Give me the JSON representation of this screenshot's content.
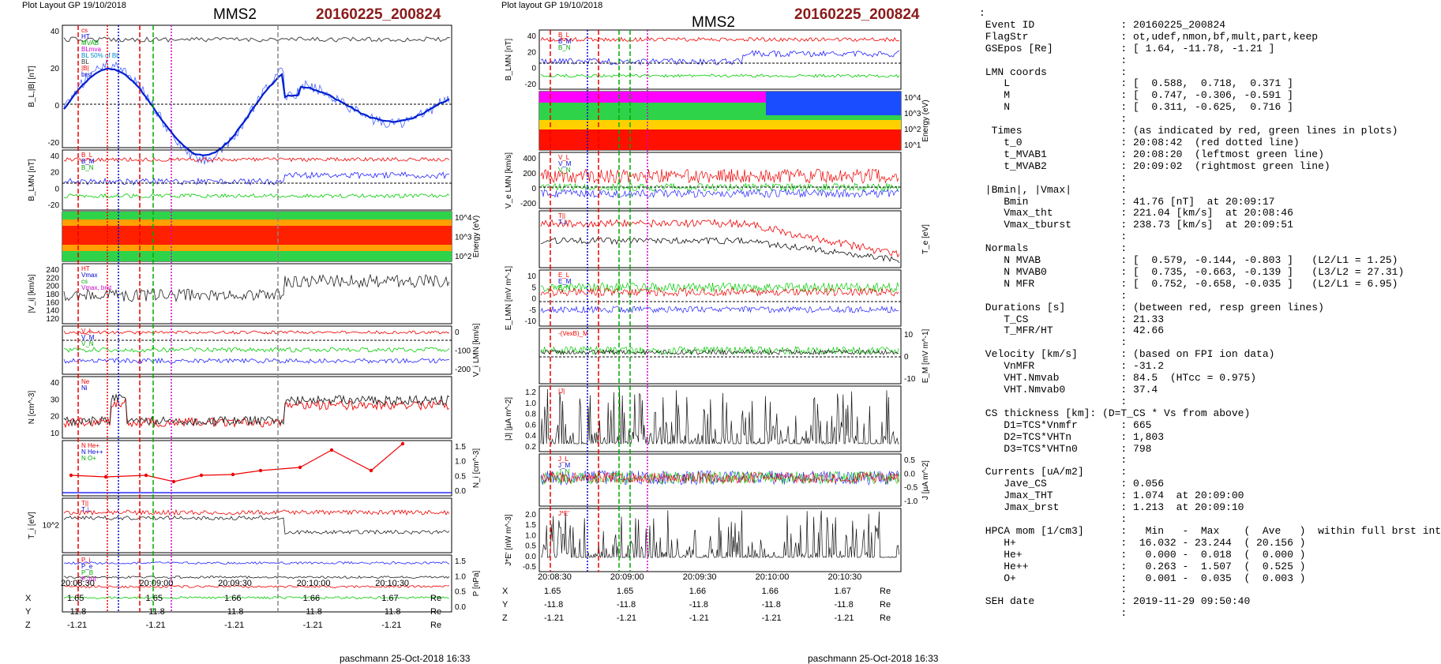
{
  "left": {
    "header": "Plot Layout GP 19/10/2018",
    "title": "MMS2",
    "event_id": "20160225_200824",
    "footer": "paschmann 25-Oct-2018 16:33",
    "time_ticks": [
      "20:08:30",
      "20:09:00",
      "20:09:30",
      "20:10:00",
      "20:10:30"
    ],
    "coords": {
      "X": [
        "1.65",
        "1.65",
        "1.66",
        "1.66",
        "1.67"
      ],
      "Y": [
        "-11.8",
        "-11.8",
        "-11.8",
        "-11.8",
        "-11.8"
      ],
      "Z": [
        "-1.21",
        "-1.21",
        "-1.21",
        "-1.21",
        "-1.21"
      ],
      "unit": "Re"
    },
    "panels": [
      {
        "ylabel": "B_L,|B| [nT]",
        "ticks": [
          "40",
          "20",
          "0",
          "-20"
        ],
        "legend": [
          "cs",
          "HT",
          "MVAB",
          "BLmva",
          "BL 50% of BL",
          "BL",
          "|B|",
          "brst"
        ]
      },
      {
        "ylabel": "B_LMN [nT]",
        "ticks": [
          "40",
          "20",
          "0",
          "-20"
        ],
        "legend": [
          "B_L",
          "B_M",
          "B_N"
        ]
      },
      {
        "ylabel": "Energy (eV)",
        "ticks": [
          "10^4",
          "10^3",
          "10^2"
        ],
        "legend": []
      },
      {
        "ylabel": "|V_i| [km/s]",
        "ticks": [
          "240",
          "220",
          "200",
          "180",
          "160",
          "140",
          "120"
        ],
        "legend": [
          "HT",
          "Vmax",
          "cs",
          "Vmax, brst"
        ]
      },
      {
        "ylabel": "V_i LMN [km/s]",
        "ticks": [
          "0",
          "-100",
          "-200"
        ],
        "legend": [
          "V_L",
          "V_M",
          "V_N"
        ]
      },
      {
        "ylabel": "N [cm^-3]",
        "ticks": [
          "40",
          "30",
          "20",
          "10"
        ],
        "legend": [
          "Ne",
          "Ni"
        ]
      },
      {
        "ylabel": "N_i [cm^-3]",
        "ticks": [
          "1.5",
          "1.0",
          "0.5",
          "0.0"
        ],
        "legend": [
          "N He+",
          "N He++",
          "N O+"
        ]
      },
      {
        "ylabel": "T_i [eV]",
        "ticks": [
          "10^2"
        ],
        "legend": [
          "T||",
          "T⊥"
        ]
      },
      {
        "ylabel": "P [nPa]",
        "ticks": [
          "1.5",
          "1.0",
          "0.5",
          "0.0"
        ],
        "legend": [
          "P_i",
          "P_e",
          "P_B",
          "P_tot"
        ]
      }
    ]
  },
  "right": {
    "header": "Plot layout GP 19/10/2018",
    "title": "MMS2",
    "event_id": "20160225_200824",
    "footer": "paschmann 25-Oct-2018 16:33",
    "time_ticks": [
      "20:08:30",
      "20:09:00",
      "20:09:30",
      "20:10:00",
      "20:10:30"
    ],
    "coords": {
      "X": [
        "1.65",
        "1.65",
        "1.66",
        "1.66",
        "1.67"
      ],
      "Y": [
        "-11.8",
        "-11.8",
        "-11.8",
        "-11.8",
        "-11.8"
      ],
      "Z": [
        "-1.21",
        "-1.21",
        "-1.21",
        "-1.21",
        "-1.21"
      ],
      "unit": "Re"
    },
    "panels": [
      {
        "ylabel": "B_LMN [nT]",
        "ticks": [
          "40",
          "20",
          "0",
          "-20"
        ],
        "legend": [
          "B_L",
          "B_M",
          "B_N"
        ]
      },
      {
        "ylabel": "Energy (eV)",
        "ticks": [
          "10^4",
          "10^3",
          "10^2",
          "10^1"
        ],
        "legend": []
      },
      {
        "ylabel": "V_e LMN [km/s]",
        "ticks": [
          "400",
          "200",
          "0",
          "-200"
        ],
        "legend": [
          "V_L",
          "V_M",
          "V_N"
        ]
      },
      {
        "ylabel": "T_e [eV]",
        "ticks": [],
        "legend": [
          "T||",
          "T⊥"
        ]
      },
      {
        "ylabel": "E_LMN [mV m^-1]",
        "ticks": [
          "10",
          "5",
          "0",
          "-5",
          "-10"
        ],
        "legend": [
          "E_L",
          "E_M",
          "E_N"
        ]
      },
      {
        "ylabel": "E_M [mV m^-1]",
        "ticks": [
          "10",
          "0",
          "-10"
        ],
        "legend": [
          "-(VexB)_M"
        ]
      },
      {
        "ylabel": "|J| [µA m^-2]",
        "ticks": [
          "1.2",
          "1.0",
          "0.8",
          "0.6",
          "0.4",
          "0.2"
        ],
        "legend": [
          "|J|"
        ]
      },
      {
        "ylabel": "J [µA m^-2]",
        "ticks": [
          "0.5",
          "0.0",
          "-0.5",
          "-1.0"
        ],
        "legend": [
          "J_L",
          "J_M",
          "J_N"
        ]
      },
      {
        "ylabel": "J*E' [nW m^-3]",
        "ticks": [
          "2.0",
          "1.5",
          "1.0",
          "0.5",
          "0.0",
          "-0.5"
        ],
        "legend": [
          "J*E'"
        ]
      }
    ]
  },
  "info_lines": [
    ":",
    " Event ID              : 20160225_200824",
    " FlagStr               : ot,udef,nmon,bf,mult,part,keep",
    " GSEpos [Re]           : [ 1.64, -11.78, -1.21 ]",
    "                       :",
    " LMN coords            :",
    "    L                  : [  0.588,  0.718,  0.371 ]",
    "    M                  : [  0.747, -0.306, -0.591 ]",
    "    N                  : [  0.311, -0.625,  0.716 ]",
    "                       :",
    "  Times                : (as indicated by red, green lines in plots)",
    "    t_0                : 20:08:42  (red dotted line)",
    "    t_MVAB1            : 20:08:20  (leftmost green line)",
    "    t_MVAB2            : 20:09:02  (rightmost green line)",
    "                       :",
    " |Bmin|, |Vmax|        :",
    "    Bmin               : 41.76 [nT]  at 20:09:17",
    "    Vmax_tht           : 221.04 [km/s]  at 20:08:46",
    "    Vmax_tburst        : 238.73 [km/s]  at 20:09:51",
    "                       :",
    " Normals               :",
    "    N MVAB             : [  0.579, -0.144, -0.803 ]   (L2/L1 = 1.25)",
    "    N MVAB0            : [  0.735, -0.663, -0.139 ]   (L3/L2 = 27.31)",
    "    N MFR              : [  0.752, -0.658, -0.035 ]   (L2/L1 = 6.95)",
    "                       :",
    " Durations [s]         : (between red, resp green lines)",
    "    T_CS               : 21.33",
    "    T_MFR/HT           : 42.66",
    "                       :",
    " Velocity [km/s]       : (based on FPI ion data)",
    "    VnMFR              : -31.2",
    "    VHT.Nmvab          : 84.5  (HTcc = 0.975)",
    "    VHT.Nmvab0         : 37.4",
    "                       :",
    " CS thickness [km]: (D=T_CS * Vs from above)",
    "    D1=TCS*Vnmfr       : 665",
    "    D2=TCS*VHTn        : 1,803",
    "    D3=TCS*VHTn0       : 798",
    "                       :",
    " Currents [uA/m2]      :",
    "    Jave_CS            : 0.056",
    "    Jmax_THT           : 1.074  at 20:09:00",
    "    Jmax_brst          : 1.213  at 20:09:10",
    "                       :",
    " HPCA mom [1/cm3]      :   Min   -  Max    (  Ave   )  within full brst int",
    "    H+                 :  16.032 - 23.244  ( 20.156 )",
    "    He+                :   0.000 -  0.018  (  0.000 )",
    "    He++               :   0.263 -  1.507  (  0.525 )",
    "    O+                 :   0.001 -  0.035  (  0.003 )",
    "                       :",
    " SEH date              : 2019-11-29 09:50:40",
    "                       :"
  ]
}
